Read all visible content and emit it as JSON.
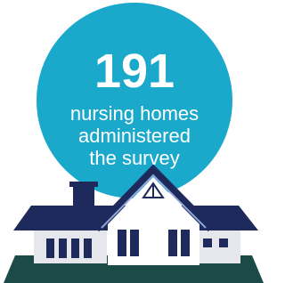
{
  "stat": {
    "value": 191,
    "label": [
      "nursing homes",
      "administered",
      "the survey"
    ]
  }
}
